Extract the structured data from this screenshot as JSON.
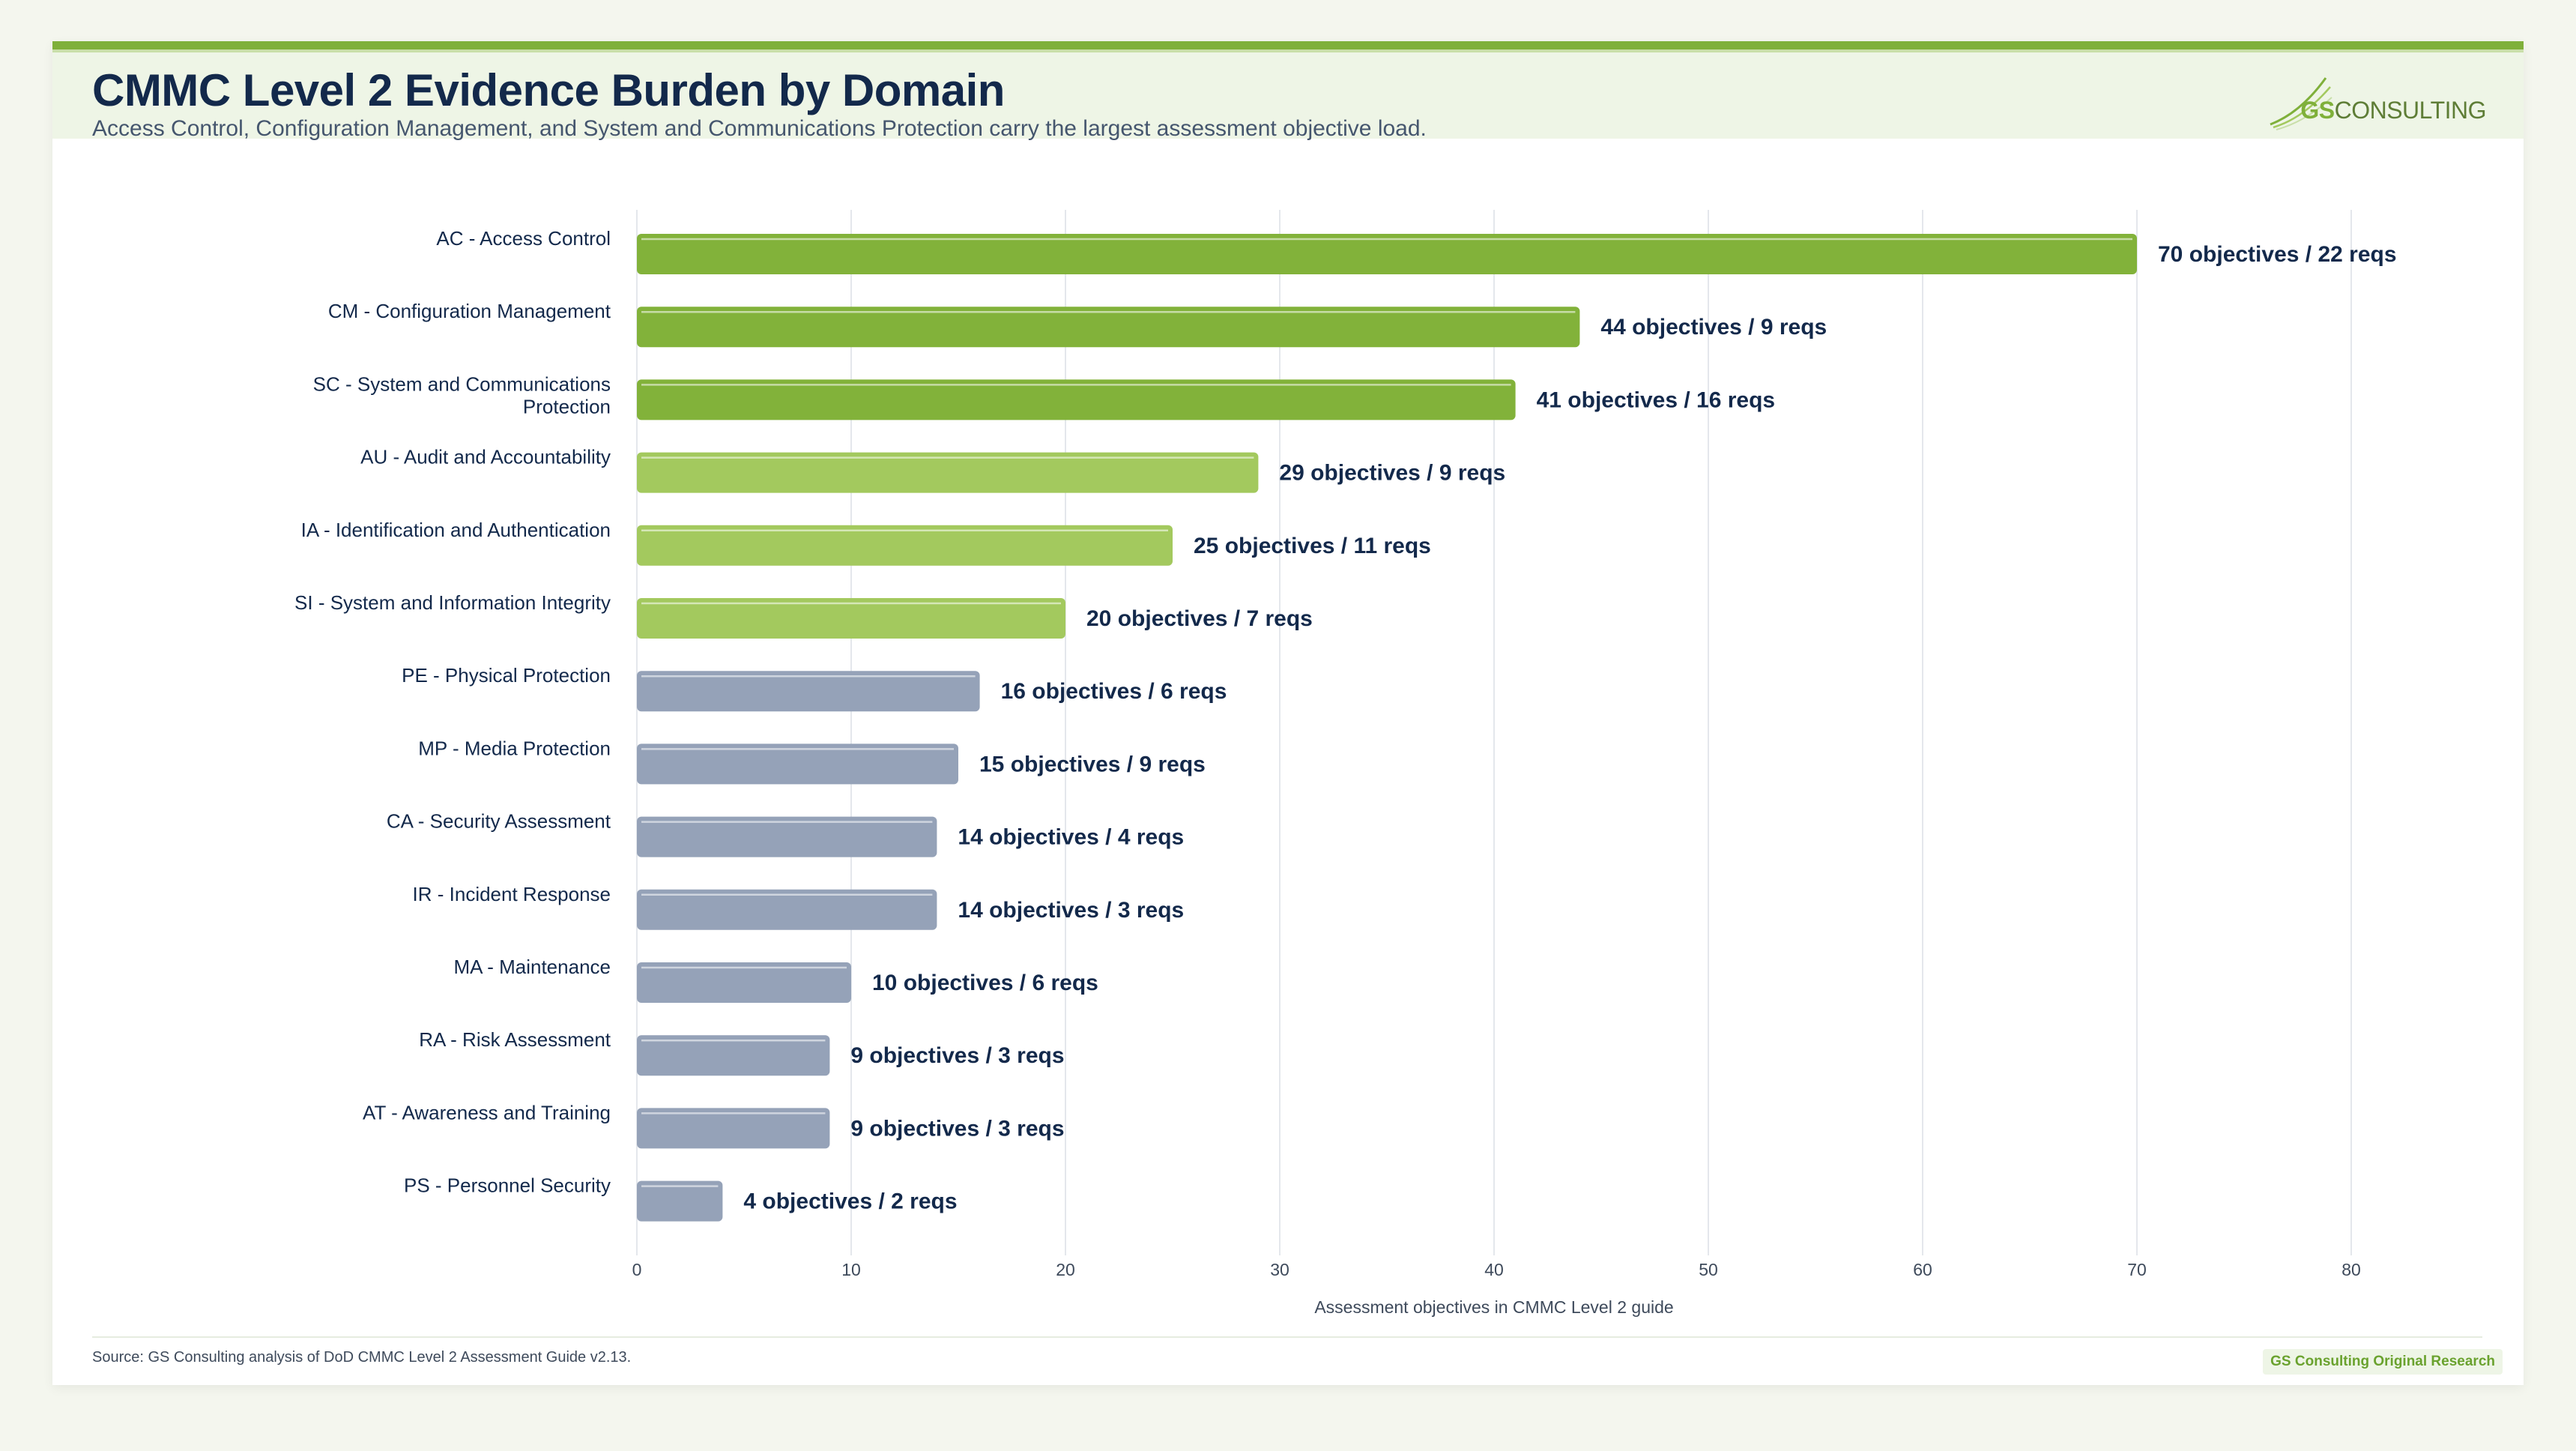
{
  "header": {
    "title": "CMMC Level 2 Evidence Burden by Domain",
    "subtitle": "Access Control, Configuration Management, and System and Communications Protection carry the largest assessment objective load.",
    "logo": {
      "strong": "GS",
      "rest": "CONSULTING"
    }
  },
  "footer": {
    "source": "Source: GS Consulting analysis of DoD CMMC Level 2 Assessment Guide v2.13.",
    "badge": "GS Consulting Original Research"
  },
  "colors": {
    "high": "#82b23a",
    "mid": "#a3c95e",
    "low": "#95a2b8",
    "label": "#13294b",
    "grid": "#e4e7ec"
  },
  "chart_data": {
    "type": "bar",
    "orientation": "horizontal",
    "xlabel": "Assessment objectives in CMMC Level 2 guide",
    "xlim": [
      0,
      80
    ],
    "xticks": [
      0,
      10,
      20,
      30,
      40,
      50,
      60,
      70,
      80
    ],
    "grid": true,
    "categories": [
      "AC - Access Control",
      "CM - Configuration Management",
      "SC - System and Communications Protection",
      "AU - Audit and Accountability",
      "IA - Identification and Authentication",
      "SI - System and Information Integrity",
      "PE - Physical Protection",
      "MP - Media Protection",
      "CA - Security Assessment",
      "IR - Incident Response",
      "MA - Maintenance",
      "RA - Risk Assessment",
      "AT - Awareness and Training",
      "PS - Personnel Security"
    ],
    "values": [
      70,
      44,
      41,
      29,
      25,
      20,
      16,
      15,
      14,
      14,
      10,
      9,
      9,
      4
    ],
    "data_labels": [
      "70 objectives / 22 reqs",
      "44 objectives / 9 reqs",
      "41 objectives / 16 reqs",
      "29 objectives / 9 reqs",
      "25 objectives / 11 reqs",
      "20 objectives / 7 reqs",
      "16 objectives / 6 reqs",
      "15 objectives / 9 reqs",
      "14 objectives / 4 reqs",
      "14 objectives / 3 reqs",
      "10 objectives / 6 reqs",
      "9 objectives / 3 reqs",
      "9 objectives / 3 reqs",
      "4 objectives / 2 reqs"
    ],
    "tiers": [
      "high",
      "high",
      "high",
      "mid",
      "mid",
      "mid",
      "low",
      "low",
      "low",
      "low",
      "low",
      "low",
      "low",
      "low"
    ]
  }
}
